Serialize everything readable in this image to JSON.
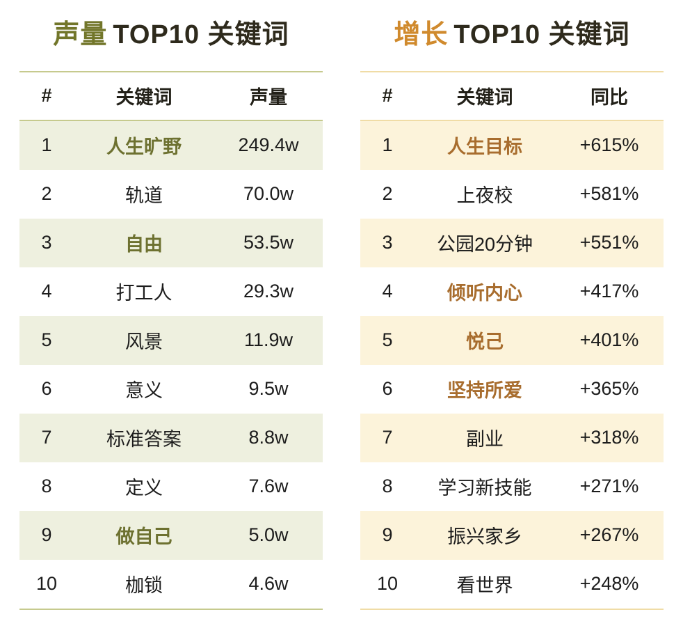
{
  "chart_data": [
    {
      "type": "table",
      "title": "声量 TOP10 关键词",
      "title_accent": "声量",
      "title_rest": "TOP10 关键词",
      "columns": [
        "#",
        "关键词",
        "声量"
      ],
      "accent_color": "#72762a",
      "highlight_text_color": "#6d7130",
      "row_stripe_color": "#eef0df",
      "rule_color": "#c6ca8e",
      "rows": [
        {
          "rank": "1",
          "keyword": "人生旷野",
          "value": "249.4w",
          "highlight": true
        },
        {
          "rank": "2",
          "keyword": "轨道",
          "value": "70.0w",
          "highlight": false
        },
        {
          "rank": "3",
          "keyword": "自由",
          "value": "53.5w",
          "highlight": true
        },
        {
          "rank": "4",
          "keyword": "打工人",
          "value": "29.3w",
          "highlight": false
        },
        {
          "rank": "5",
          "keyword": "风景",
          "value": "11.9w",
          "highlight": false
        },
        {
          "rank": "6",
          "keyword": "意义",
          "value": "9.5w",
          "highlight": false
        },
        {
          "rank": "7",
          "keyword": "标准答案",
          "value": "8.8w",
          "highlight": false
        },
        {
          "rank": "8",
          "keyword": "定义",
          "value": "7.6w",
          "highlight": false
        },
        {
          "rank": "9",
          "keyword": "做自己",
          "value": "5.0w",
          "highlight": true
        },
        {
          "rank": "10",
          "keyword": "枷锁",
          "value": "4.6w",
          "highlight": false
        }
      ]
    },
    {
      "type": "table",
      "title": "增长 TOP10 关键词",
      "title_accent": "增长",
      "title_rest": "TOP10 关键词",
      "columns": [
        "#",
        "关键词",
        "同比"
      ],
      "accent_color": "#d08a2d",
      "highlight_text_color": "#a86d2e",
      "row_stripe_color": "#fcf3da",
      "rule_color": "#f0dca6",
      "rows": [
        {
          "rank": "1",
          "keyword": "人生目标",
          "value": "+615%",
          "highlight": true
        },
        {
          "rank": "2",
          "keyword": "上夜校",
          "value": "+581%",
          "highlight": false
        },
        {
          "rank": "3",
          "keyword": "公园20分钟",
          "value": "+551%",
          "highlight": false
        },
        {
          "rank": "4",
          "keyword": "倾听内心",
          "value": "+417%",
          "highlight": true
        },
        {
          "rank": "5",
          "keyword": "悦己",
          "value": "+401%",
          "highlight": true
        },
        {
          "rank": "6",
          "keyword": "坚持所爱",
          "value": "+365%",
          "highlight": true
        },
        {
          "rank": "7",
          "keyword": "副业",
          "value": "+318%",
          "highlight": false
        },
        {
          "rank": "8",
          "keyword": "学习新技能",
          "value": "+271%",
          "highlight": false
        },
        {
          "rank": "9",
          "keyword": "振兴家乡",
          "value": "+267%",
          "highlight": false
        },
        {
          "rank": "10",
          "keyword": "看世界",
          "value": "+248%",
          "highlight": false
        }
      ]
    }
  ]
}
